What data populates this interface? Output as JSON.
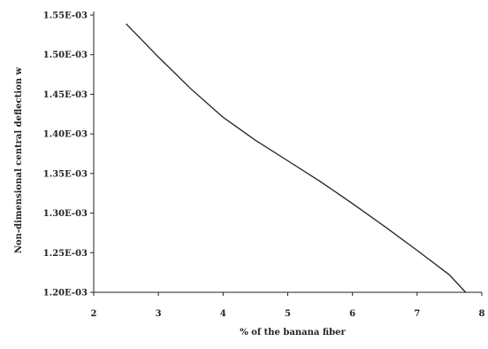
{
  "chart_data": {
    "type": "line",
    "title": "",
    "xlabel": "% of the banana fiber",
    "ylabel": "Non-dimensional central deflection w",
    "xlim": [
      2,
      8
    ],
    "ylim": [
      0.0012,
      0.00155
    ],
    "x_ticks": [
      2,
      3,
      4,
      5,
      6,
      7,
      8
    ],
    "x_tick_labels": [
      "2",
      "3",
      "4",
      "5",
      "6",
      "7",
      "8"
    ],
    "y_ticks": [
      0.0012,
      0.00125,
      0.0013,
      0.00135,
      0.0014,
      0.00145,
      0.0015,
      0.00155
    ],
    "y_tick_labels": [
      "1.20E-03",
      "1.25E-03",
      "1.30E-03",
      "1.35E-03",
      "1.40E-03",
      "1.45E-03",
      "1.50E-03",
      "1.55E-03"
    ],
    "grid": false,
    "legend": "none",
    "series": [
      {
        "color": "#222222",
        "x": [
          2.5,
          3,
          3.5,
          4,
          4.5,
          5,
          5.5,
          6,
          6.5,
          7,
          7.5,
          7.75
        ],
        "y": [
          0.001539,
          0.001497,
          0.001457,
          0.001421,
          0.001392,
          0.001366,
          0.00134,
          0.001312,
          0.001283,
          0.001253,
          0.001222,
          0.0012
        ]
      }
    ]
  }
}
